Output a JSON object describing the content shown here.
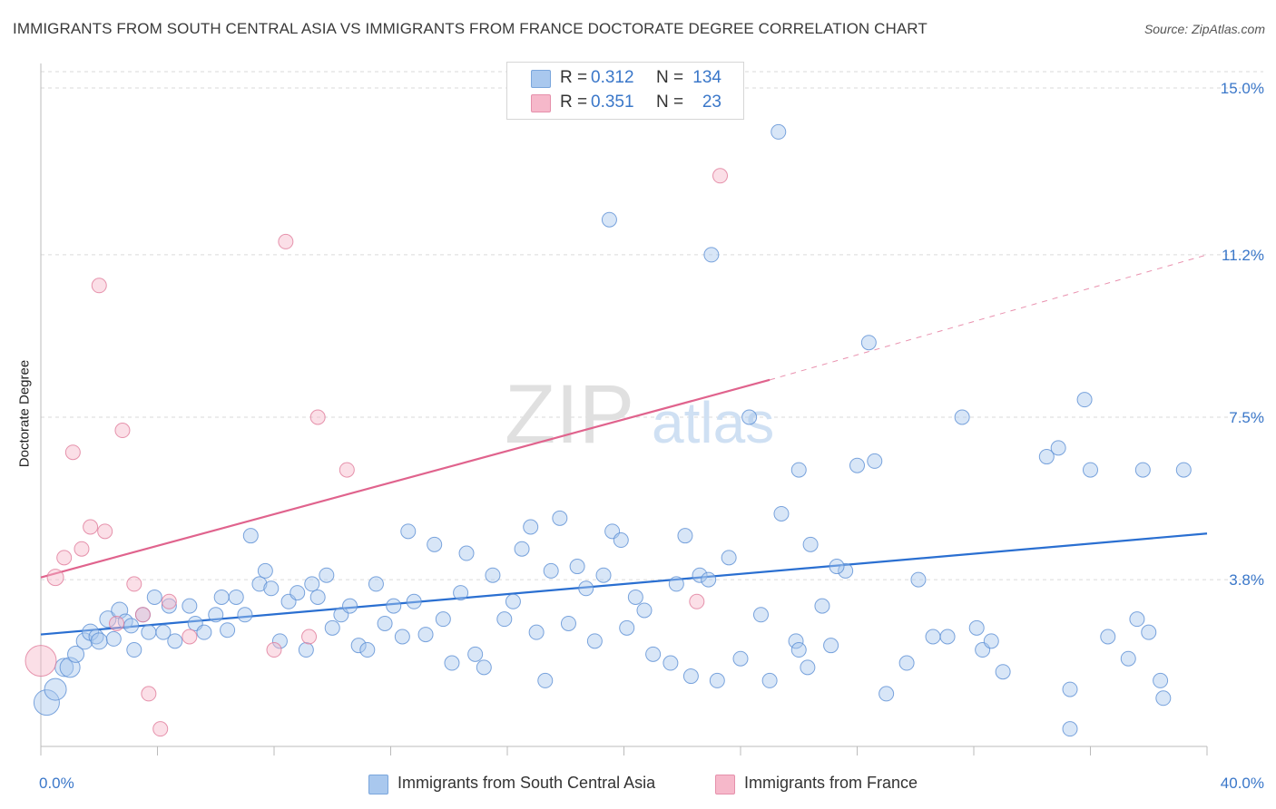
{
  "chart_data": {
    "type": "scatter",
    "title": "IMMIGRANTS FROM SOUTH CENTRAL ASIA VS IMMIGRANTS FROM FRANCE DOCTORATE DEGREE CORRELATION CHART",
    "source": "Source: ZipAtlas.com",
    "ylabel": "Doctorate Degree",
    "xlabel": "",
    "xlim": [
      0,
      40
    ],
    "ylim": [
      0,
      15.5
    ],
    "x_tick_labels": [
      "0.0%",
      "40.0%"
    ],
    "y_ticks": [
      {
        "value": 3.8,
        "label": "3.8%"
      },
      {
        "value": 7.5,
        "label": "7.5%"
      },
      {
        "value": 11.2,
        "label": "11.2%"
      },
      {
        "value": 15.0,
        "label": "15.0%"
      }
    ],
    "watermark": "ZIPatlas",
    "stats": [
      {
        "r_label": "R =",
        "r_value": "0.312",
        "n_label": "N =",
        "n_value": "134",
        "color": "#a9c8ee"
      },
      {
        "r_label": "R =",
        "r_value": "0.351",
        "n_label": "N =",
        "n_value": "23",
        "color": "#f6b8ca"
      }
    ],
    "series": [
      {
        "name": "Immigrants from South Central Asia",
        "fill": "#a9c8ee",
        "stroke": "#5b8fd4",
        "trend": {
          "x0": 0,
          "y0": 2.55,
          "x1": 40,
          "y1": 4.85,
          "color": "#2a6fd1",
          "dashed_to": null
        },
        "points": [
          [
            0.2,
            1.0,
            28
          ],
          [
            0.5,
            1.3,
            24
          ],
          [
            0.8,
            1.8,
            20
          ],
          [
            1.0,
            1.8,
            22
          ],
          [
            1.2,
            2.1,
            18
          ],
          [
            1.5,
            2.4,
            18
          ],
          [
            1.7,
            2.6,
            18
          ],
          [
            1.9,
            2.5,
            16
          ],
          [
            2.0,
            2.4,
            18
          ],
          [
            2.3,
            2.9,
            18
          ],
          [
            2.5,
            2.45,
            16
          ],
          [
            2.7,
            3.1,
            18
          ],
          [
            2.9,
            2.85,
            16
          ],
          [
            3.1,
            2.75,
            16
          ],
          [
            3.2,
            2.2,
            16
          ],
          [
            3.5,
            3.0,
            16
          ],
          [
            3.7,
            2.6,
            16
          ],
          [
            3.9,
            3.4,
            16
          ],
          [
            4.2,
            2.6,
            16
          ],
          [
            4.4,
            3.2,
            16
          ],
          [
            4.6,
            2.4,
            16
          ],
          [
            5.1,
            3.2,
            16
          ],
          [
            5.3,
            2.8,
            16
          ],
          [
            5.6,
            2.6,
            16
          ],
          [
            6.0,
            3.0,
            16
          ],
          [
            6.2,
            3.4,
            16
          ],
          [
            6.4,
            2.65,
            16
          ],
          [
            6.7,
            3.4,
            16
          ],
          [
            7.0,
            3.0,
            16
          ],
          [
            7.2,
            4.8,
            16
          ],
          [
            7.5,
            3.7,
            16
          ],
          [
            7.7,
            4.0,
            16
          ],
          [
            7.9,
            3.6,
            16
          ],
          [
            8.2,
            2.4,
            16
          ],
          [
            8.5,
            3.3,
            16
          ],
          [
            8.8,
            3.5,
            16
          ],
          [
            9.1,
            2.2,
            16
          ],
          [
            9.3,
            3.7,
            16
          ],
          [
            9.5,
            3.4,
            16
          ],
          [
            9.8,
            3.9,
            16
          ],
          [
            10.0,
            2.7,
            16
          ],
          [
            10.3,
            3.0,
            16
          ],
          [
            10.6,
            3.2,
            16
          ],
          [
            10.9,
            2.3,
            16
          ],
          [
            11.2,
            2.2,
            16
          ],
          [
            11.5,
            3.7,
            16
          ],
          [
            11.8,
            2.8,
            16
          ],
          [
            12.1,
            3.2,
            16
          ],
          [
            12.4,
            2.5,
            16
          ],
          [
            12.6,
            4.9,
            16
          ],
          [
            12.8,
            3.3,
            16
          ],
          [
            13.2,
            2.55,
            16
          ],
          [
            13.5,
            4.6,
            16
          ],
          [
            13.8,
            2.9,
            16
          ],
          [
            14.1,
            1.9,
            16
          ],
          [
            14.4,
            3.5,
            16
          ],
          [
            14.6,
            4.4,
            16
          ],
          [
            14.9,
            2.1,
            16
          ],
          [
            15.2,
            1.8,
            16
          ],
          [
            15.5,
            3.9,
            16
          ],
          [
            15.9,
            2.9,
            16
          ],
          [
            16.2,
            3.3,
            16
          ],
          [
            16.5,
            4.5,
            16
          ],
          [
            16.8,
            5.0,
            16
          ],
          [
            17.0,
            2.6,
            16
          ],
          [
            17.3,
            1.5,
            16
          ],
          [
            17.5,
            4.0,
            16
          ],
          [
            17.8,
            5.2,
            16
          ],
          [
            18.1,
            2.8,
            16
          ],
          [
            18.4,
            4.1,
            16
          ],
          [
            18.7,
            3.6,
            16
          ],
          [
            19.0,
            2.4,
            16
          ],
          [
            19.3,
            3.9,
            16
          ],
          [
            19.6,
            4.9,
            16
          ],
          [
            19.9,
            4.7,
            16
          ],
          [
            20.1,
            2.7,
            16
          ],
          [
            19.5,
            12.0,
            16
          ],
          [
            20.4,
            3.4,
            16
          ],
          [
            20.7,
            3.1,
            16
          ],
          [
            21.0,
            2.1,
            16
          ],
          [
            21.6,
            1.9,
            16
          ],
          [
            21.8,
            3.7,
            16
          ],
          [
            22.1,
            4.8,
            16
          ],
          [
            22.3,
            1.6,
            16
          ],
          [
            22.6,
            3.9,
            16
          ],
          [
            22.9,
            3.8,
            16
          ],
          [
            23.2,
            1.5,
            16
          ],
          [
            23.6,
            4.3,
            16
          ],
          [
            24.0,
            2.0,
            16
          ],
          [
            24.3,
            7.5,
            16
          ],
          [
            24.7,
            3.0,
            16
          ],
          [
            25.0,
            1.5,
            16
          ],
          [
            25.4,
            5.3,
            16
          ],
          [
            25.9,
            2.4,
            16
          ],
          [
            26.0,
            2.2,
            16
          ],
          [
            26.3,
            1.8,
            16
          ],
          [
            26.8,
            3.2,
            16
          ],
          [
            26.4,
            4.6,
            16
          ],
          [
            27.1,
            2.3,
            16
          ],
          [
            27.6,
            4.0,
            16
          ],
          [
            28.0,
            6.4,
            16
          ],
          [
            28.6,
            6.5,
            16
          ],
          [
            28.4,
            9.2,
            16
          ],
          [
            29.0,
            1.2,
            16
          ],
          [
            29.7,
            1.9,
            16
          ],
          [
            30.1,
            3.8,
            16
          ],
          [
            30.6,
            2.5,
            16
          ],
          [
            31.1,
            2.5,
            16
          ],
          [
            31.6,
            7.5,
            16
          ],
          [
            32.1,
            2.7,
            16
          ],
          [
            32.3,
            2.2,
            16
          ],
          [
            32.6,
            2.4,
            16
          ],
          [
            33.0,
            1.7,
            16
          ],
          [
            34.5,
            6.6,
            16
          ],
          [
            34.9,
            6.8,
            16
          ],
          [
            35.3,
            1.3,
            16
          ],
          [
            35.8,
            7.9,
            16
          ],
          [
            35.3,
            0.4,
            16
          ],
          [
            36.0,
            6.3,
            16
          ],
          [
            36.6,
            2.5,
            16
          ],
          [
            37.3,
            2.0,
            16
          ],
          [
            37.6,
            2.9,
            16
          ],
          [
            37.8,
            6.3,
            16
          ],
          [
            38.0,
            2.6,
            16
          ],
          [
            38.5,
            1.1,
            16
          ],
          [
            39.2,
            6.3,
            16
          ],
          [
            38.4,
            1.5,
            16
          ],
          [
            25.3,
            14.0,
            16
          ],
          [
            23.0,
            11.2,
            16
          ],
          [
            27.3,
            4.1,
            16
          ],
          [
            26.0,
            6.3,
            16
          ]
        ]
      },
      {
        "name": "Immigrants from France",
        "fill": "#f6b8ca",
        "stroke": "#e07a9a",
        "trend": {
          "x0": 0,
          "y0": 3.85,
          "x1": 25.0,
          "y1": 8.35,
          "color": "#e0638d",
          "dashed_to": {
            "x": 40,
            "y": 11.2
          }
        },
        "points": [
          [
            0.0,
            1.95,
            34
          ],
          [
            0.5,
            3.85,
            18
          ],
          [
            0.8,
            4.3,
            16
          ],
          [
            1.1,
            6.7,
            16
          ],
          [
            1.4,
            4.5,
            16
          ],
          [
            1.7,
            5.0,
            16
          ],
          [
            2.0,
            10.5,
            16
          ],
          [
            2.2,
            4.9,
            16
          ],
          [
            2.6,
            2.8,
            16
          ],
          [
            2.8,
            7.2,
            16
          ],
          [
            3.2,
            3.7,
            16
          ],
          [
            3.5,
            3.0,
            16
          ],
          [
            3.7,
            1.2,
            16
          ],
          [
            4.1,
            0.4,
            16
          ],
          [
            4.4,
            3.3,
            16
          ],
          [
            5.1,
            2.5,
            16
          ],
          [
            8.0,
            2.2,
            16
          ],
          [
            8.4,
            11.5,
            16
          ],
          [
            9.2,
            2.5,
            16
          ],
          [
            9.5,
            7.5,
            16
          ],
          [
            10.5,
            6.3,
            16
          ],
          [
            23.3,
            13.0,
            16
          ],
          [
            22.5,
            3.3,
            16
          ]
        ]
      }
    ]
  }
}
